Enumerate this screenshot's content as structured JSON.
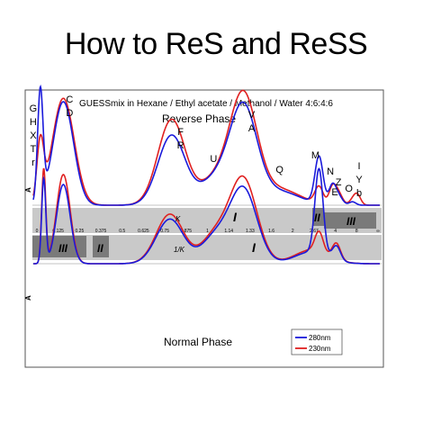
{
  "slide": {
    "title": "How to ReS and ReSS"
  },
  "chart_data": {
    "type": "line",
    "chart_title": "GUESSmix in Hexane / Ethyl acetate / Methanol / Water 4:6:4:6",
    "top_panel_label": "Reverse Phase",
    "bottom_panel_label": "Normal Phase",
    "ylabel": "A",
    "top_axis": {
      "name": "K",
      "ticks": [
        "0",
        "0.125",
        "0.25",
        "0.375",
        "0.5",
        "0.625",
        "0.75",
        "0.875",
        "1",
        "1.14",
        "1.33",
        "1.6",
        "2",
        "2.67",
        "4",
        "8",
        "∞"
      ],
      "zones": [
        "I",
        "II",
        "III"
      ]
    },
    "bottom_axis": {
      "name": "1/K",
      "zones": [
        "III",
        "II",
        "I"
      ]
    },
    "legend": [
      {
        "label": "280nm",
        "color": "#1a1adb"
      },
      {
        "label": "230nm",
        "color": "#e02020"
      }
    ],
    "peak_labels_top": [
      {
        "text": "G",
        "x": 0.01
      },
      {
        "text": "H",
        "x": 0.01
      },
      {
        "text": "X",
        "x": 0.01
      },
      {
        "text": "T",
        "x": 0.01
      },
      {
        "text": "r",
        "x": 0.01
      },
      {
        "text": "C",
        "x": 0.15
      },
      {
        "text": "D",
        "x": 0.15
      },
      {
        "text": "F",
        "x": 0.8
      },
      {
        "text": "R",
        "x": 0.8
      },
      {
        "text": "U",
        "x": 1.04
      },
      {
        "text": "V",
        "x": 1.28
      },
      {
        "text": "A",
        "x": 1.28
      },
      {
        "text": "Q",
        "x": 1.72
      },
      {
        "text": "M",
        "x": 2.98
      },
      {
        "text": "N",
        "x": 3.8
      },
      {
        "text": "Z",
        "x": 4.25
      },
      {
        "text": "E",
        "x": 4.9
      },
      {
        "text": "O",
        "x": 7.2
      },
      {
        "text": "I",
        "x": 8.35
      },
      {
        "text": "Y",
        "x": 8.35
      },
      {
        "text": "b",
        "x": 8.35
      }
    ],
    "series": [
      {
        "name": "280nm",
        "top_peaks": [
          {
            "k": 0.02,
            "h": 0.98,
            "w": 0.008
          },
          {
            "k": 0.155,
            "h": 0.92,
            "w": 0.03
          },
          {
            "k": 0.79,
            "h": 0.62,
            "w": 0.04
          },
          {
            "k": 1.05,
            "h": 0.22,
            "w": 0.045
          },
          {
            "k": 1.27,
            "h": 0.85,
            "w": 0.04
          },
          {
            "k": 1.75,
            "h": 0.12,
            "w": 0.06
          },
          {
            "k": 2.98,
            "h": 0.42,
            "w": 0.012
          },
          {
            "k": 3.8,
            "h": 0.16,
            "w": 0.01
          },
          {
            "k": 4.25,
            "h": 0.06,
            "w": 0.01
          },
          {
            "k": 5.0,
            "h": 0.04,
            "w": 0.01
          },
          {
            "k": 7.2,
            "h": 0.03,
            "w": 0.01
          }
        ],
        "bottom_peaks": [
          {
            "k": 0.04,
            "h": -0.85,
            "w": 0.006
          },
          {
            "k": 0.155,
            "h": -0.8,
            "w": 0.02
          },
          {
            "k": 0.78,
            "h": -0.45,
            "w": 0.04
          },
          {
            "k": 1.05,
            "h": -0.26,
            "w": 0.04
          },
          {
            "k": 1.27,
            "h": -0.75,
            "w": 0.04
          },
          {
            "k": 2.6,
            "h": -0.12,
            "w": 0.05
          },
          {
            "k": 2.98,
            "h": -0.85,
            "w": 0.012
          },
          {
            "k": 4.2,
            "h": -0.14,
            "w": 0.012
          }
        ]
      },
      {
        "name": "230nm",
        "top_peaks": [
          {
            "k": 0.02,
            "h": 0.52,
            "w": 0.01
          },
          {
            "k": 0.155,
            "h": 0.95,
            "w": 0.032
          },
          {
            "k": 0.79,
            "h": 0.76,
            "w": 0.04
          },
          {
            "k": 1.05,
            "h": 0.22,
            "w": 0.045
          },
          {
            "k": 1.27,
            "h": 0.95,
            "w": 0.04
          },
          {
            "k": 1.75,
            "h": 0.14,
            "w": 0.06
          },
          {
            "k": 2.98,
            "h": 0.15,
            "w": 0.012
          },
          {
            "k": 3.8,
            "h": 0.14,
            "w": 0.01
          },
          {
            "k": 4.25,
            "h": 0.08,
            "w": 0.01
          },
          {
            "k": 5.0,
            "h": 0.05,
            "w": 0.01
          },
          {
            "k": 7.2,
            "h": 0.04,
            "w": 0.01
          },
          {
            "k": 8.35,
            "h": 0.09,
            "w": 0.01
          }
        ],
        "bottom_peaks": [
          {
            "k": 0.04,
            "h": -0.95,
            "w": 0.006
          },
          {
            "k": 0.155,
            "h": -0.9,
            "w": 0.02
          },
          {
            "k": 0.78,
            "h": -0.5,
            "w": 0.04
          },
          {
            "k": 1.05,
            "h": -0.28,
            "w": 0.04
          },
          {
            "k": 1.27,
            "h": -0.85,
            "w": 0.04
          },
          {
            "k": 2.6,
            "h": -0.14,
            "w": 0.05
          },
          {
            "k": 2.98,
            "h": -0.2,
            "w": 0.012
          },
          {
            "k": 4.2,
            "h": -0.16,
            "w": 0.012
          }
        ]
      }
    ],
    "grid": false
  }
}
